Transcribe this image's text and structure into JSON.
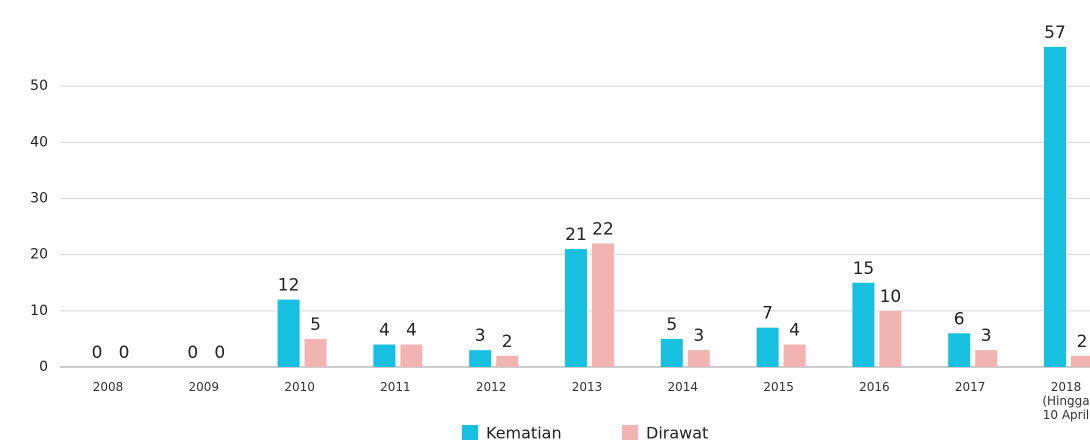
{
  "chart_data": {
    "type": "bar",
    "categories": [
      "2008",
      "2009",
      "2010",
      "2011",
      "2012",
      "2013",
      "2014",
      "2015",
      "2016",
      "2017",
      "2018 (Hingga 10 April"
    ],
    "series": [
      {
        "name": "Kematian",
        "color": "#17c0e0",
        "values": [
          0,
          0,
          12,
          4,
          3,
          21,
          5,
          7,
          15,
          6,
          57
        ]
      },
      {
        "name": "Dirawat",
        "color": "#f2b3b1",
        "values": [
          0,
          0,
          5,
          4,
          2,
          22,
          3,
          4,
          10,
          3,
          2
        ]
      }
    ],
    "ylim": [
      0,
      60
    ],
    "yticks": [
      0,
      10,
      20,
      30,
      40,
      50
    ],
    "grid": true,
    "legend": "bottom"
  }
}
